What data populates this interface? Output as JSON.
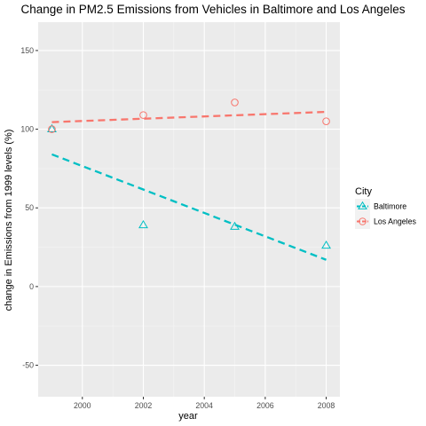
{
  "chart_data": {
    "type": "scatter",
    "title": "Change in PM2.5 Emissions from Vehicles in Baltimore and Los Angeles",
    "xlabel": "year",
    "ylabel": "change in Emissions from 1999 levels (%)",
    "xlim": [
      1998.55,
      2008.45
    ],
    "ylim": [
      -70,
      168
    ],
    "xticks": [
      2000,
      2002,
      2004,
      2006,
      2008
    ],
    "yticks": [
      -50,
      0,
      50,
      100,
      150
    ],
    "grid": true,
    "legend": {
      "title": "City",
      "position": "right"
    },
    "series": [
      {
        "name": "Baltimore",
        "color": "#00BFC4",
        "marker": "triangle",
        "x": [
          1999,
          2002,
          2005,
          2008
        ],
        "y": [
          100,
          39,
          38,
          26
        ],
        "trend": {
          "x": [
            1999,
            2008
          ],
          "y": [
            84,
            17
          ]
        }
      },
      {
        "name": "Los Angeles",
        "color": "#F8766D",
        "marker": "circle",
        "x": [
          1999,
          2002,
          2005,
          2008
        ],
        "y": [
          100,
          109,
          117,
          105
        ],
        "trend": {
          "x": [
            1999,
            2008
          ],
          "y": [
            104.5,
            111
          ]
        }
      }
    ]
  }
}
